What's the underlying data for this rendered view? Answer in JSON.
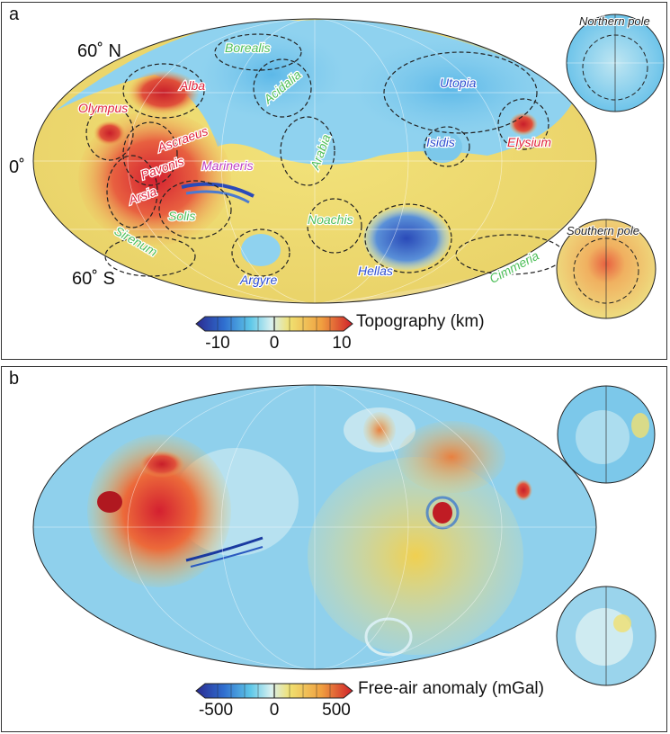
{
  "panels": {
    "a": {
      "label": "a",
      "lat_labels": {
        "north": "60˚ N",
        "equator": "0˚",
        "south": "60˚ S"
      },
      "regions": [
        {
          "name": "Borealis",
          "color": "#4fbf5a"
        },
        {
          "name": "Acidalia",
          "color": "#4fbf5a"
        },
        {
          "name": "Utopia",
          "color": "#2f4fd0"
        },
        {
          "name": "Alba",
          "color": "#e0243c"
        },
        {
          "name": "Olympus",
          "color": "#e0243c"
        },
        {
          "name": "Ascraeus",
          "color": "#e0243c"
        },
        {
          "name": "Pavonis",
          "color": "#e0243c"
        },
        {
          "name": "Arsia",
          "color": "#e0243c"
        },
        {
          "name": "Marineris",
          "color": "#c040c0"
        },
        {
          "name": "Arabia",
          "color": "#4fbf5a"
        },
        {
          "name": "Isidis",
          "color": "#2f4fd0"
        },
        {
          "name": "Elysium",
          "color": "#e0243c"
        },
        {
          "name": "Solis",
          "color": "#4fbf5a"
        },
        {
          "name": "Noachis",
          "color": "#4fbf5a"
        },
        {
          "name": "Sirenum",
          "color": "#4fbf5a"
        },
        {
          "name": "Argyre",
          "color": "#2f4fd0"
        },
        {
          "name": "Hellas",
          "color": "#2f4fd0"
        },
        {
          "name": "Cimmeria",
          "color": "#4fbf5a"
        }
      ],
      "insets": {
        "north": "Northern pole",
        "south": "Southern pole"
      },
      "colorbar": {
        "label": "Topography (km)",
        "ticks": [
          "-10",
          "0",
          "10"
        ]
      }
    },
    "b": {
      "label": "b",
      "colorbar": {
        "label": "Free-air anomaly (mGal)",
        "ticks": [
          "-500",
          "0",
          "500"
        ]
      }
    }
  },
  "colors": {
    "low": "#2a3aa8",
    "mid_low": "#3fb0e0",
    "mid": "#f0f0e0",
    "mid_high": "#f0d040",
    "high": "#d8202a"
  }
}
